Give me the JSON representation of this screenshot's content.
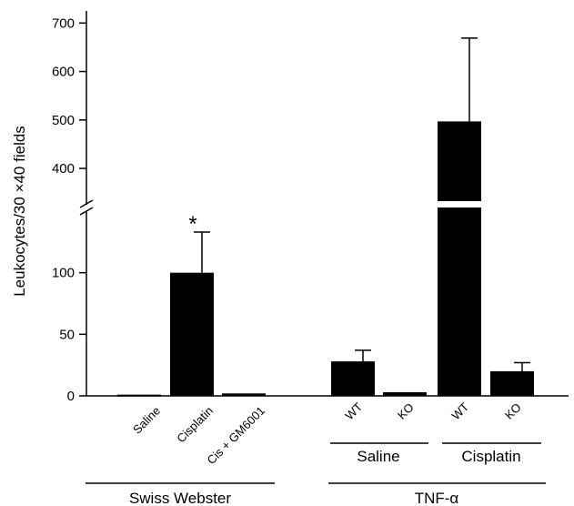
{
  "chart_data": {
    "type": "bar",
    "title": "",
    "ylabel": "Leukocytes/30 ×40 fields",
    "xlabel": "",
    "axis_break": true,
    "ylim_lower": [
      0,
      150
    ],
    "ylim_upper": [
      325,
      725
    ],
    "yticks_lower": [
      0,
      50,
      100
    ],
    "yticks_upper": [
      400,
      500,
      600,
      700
    ],
    "bar_color": "#000000",
    "bars": [
      {
        "label": "Saline",
        "value": 1,
        "error": 0,
        "group": "Swiss Webster"
      },
      {
        "label": "Cisplatin",
        "value": 100,
        "error": 33,
        "annotation": "*",
        "group": "Swiss Webster"
      },
      {
        "label": "Cis + GM6001",
        "value": 2,
        "error": 0,
        "group": "Swiss Webster"
      },
      {
        "label": "WT",
        "value": 28,
        "error": 9,
        "group": "TNF-α / Saline"
      },
      {
        "label": "KO",
        "value": 3,
        "error": 0,
        "group": "TNF-α / Saline"
      },
      {
        "label": "WT",
        "value": 497,
        "error": 172,
        "group": "TNF-α / Cisplatin"
      },
      {
        "label": "KO",
        "value": 20,
        "error": 7,
        "group": "TNF-α / Cisplatin"
      }
    ],
    "group_labels": {
      "swiss": "Swiss Webster",
      "tnf": "TNF-α",
      "tnf_saline": "Saline",
      "tnf_cisplatin": "Cisplatin"
    }
  }
}
